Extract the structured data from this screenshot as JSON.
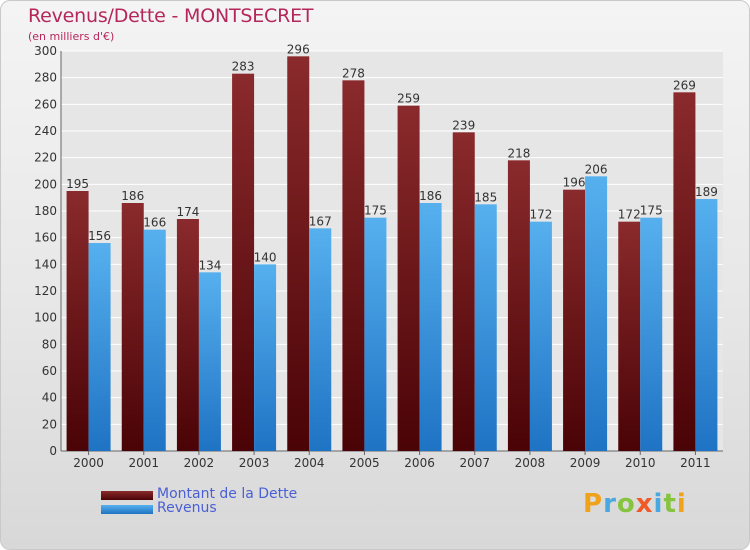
{
  "header": {
    "title": "Revenus/Dette - MONTSECRET",
    "subtitle": "(en milliers d'€)"
  },
  "legend": {
    "items": [
      {
        "label": "Montant de la Dette",
        "color": "#7a1c1f"
      },
      {
        "label": "Revenus",
        "color": "#3f9ee4"
      }
    ]
  },
  "brand": {
    "letters": [
      "P",
      "r",
      "o",
      "x",
      "i",
      "t",
      "i"
    ],
    "colors": [
      "#f0a21a",
      "#4aa8e0",
      "#86c440",
      "#f05a28",
      "#4aa8e0",
      "#86c440",
      "#f0a21a"
    ]
  },
  "chart_data": {
    "type": "bar",
    "title": "Revenus/Dette - MONTSECRET",
    "subtitle": "(en milliers d'€)",
    "categories": [
      "2000",
      "2001",
      "2002",
      "2003",
      "2004",
      "2005",
      "2006",
      "2007",
      "2008",
      "2009",
      "2010",
      "2011"
    ],
    "series": [
      {
        "name": "Montant de la Dette",
        "color": "#7a1c1f",
        "values": [
          195,
          186,
          174,
          283,
          296,
          278,
          259,
          239,
          218,
          196,
          172,
          269
        ]
      },
      {
        "name": "Revenus",
        "color": "#3f9ee4",
        "values": [
          156,
          166,
          134,
          140,
          167,
          175,
          186,
          185,
          172,
          206,
          175,
          189
        ]
      }
    ],
    "ylim": [
      0,
      300
    ],
    "yticks": [
      0,
      20,
      40,
      60,
      80,
      100,
      120,
      140,
      160,
      180,
      200,
      220,
      240,
      260,
      280,
      300
    ],
    "grid": true,
    "legend_position": "bottom-left"
  }
}
